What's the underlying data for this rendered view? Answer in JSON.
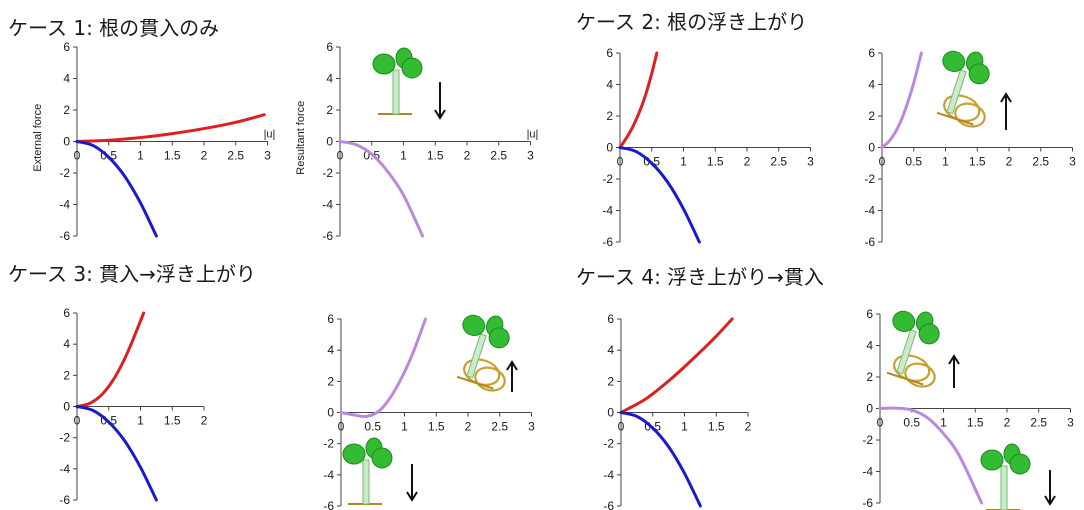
{
  "cases": [
    {
      "title": "ケース 1: 根の貫入のみ"
    },
    {
      "title": "ケース 2: 根の浮き上がり"
    },
    {
      "title": "ケース 3: 貫入→浮き上がり"
    },
    {
      "title": "ケース 4: 浮き上がり→貫入"
    }
  ],
  "colors": {
    "red": "#dd1f1f",
    "blue": "#1a1acc",
    "purple": "#bb88dd"
  },
  "icons": [
    "sprout-root-penetrating-icon",
    "sprout-root-lifting-icon",
    "down-arrow-icon",
    "up-arrow-icon"
  ],
  "chart_data": [
    {
      "type": "line",
      "panel": "case1-external",
      "xticks": [
        "0",
        "0.5",
        "1",
        "1.5",
        "2",
        "2.5",
        "3"
      ],
      "yticks": [
        "-6",
        "-4",
        "-2",
        "0",
        "2",
        "4",
        "6"
      ],
      "xlim": [
        0,
        3
      ],
      "ylim": [
        -6,
        6
      ],
      "xlabel": "|u|",
      "ylabel": "External force",
      "series": [
        {
          "color": "red",
          "x": [
            0,
            0.5,
            1,
            1.5,
            2,
            2.5,
            2.95
          ],
          "y": [
            0,
            0.08,
            0.25,
            0.5,
            0.82,
            1.22,
            1.7
          ]
        },
        {
          "color": "blue",
          "x": [
            0,
            0.25,
            0.5,
            0.75,
            1,
            1.25
          ],
          "y": [
            0,
            -0.25,
            -1.0,
            -2.2,
            -3.9,
            -6
          ]
        }
      ]
    },
    {
      "type": "line",
      "panel": "case1-resultant",
      "xticks": [
        "0",
        "0.5",
        "1",
        "1.5",
        "2",
        "2.5",
        "3"
      ],
      "yticks": [
        "-6",
        "-4",
        "-2",
        "0",
        "2",
        "4",
        "6"
      ],
      "xlim": [
        0,
        3
      ],
      "ylim": [
        -6,
        6
      ],
      "xlabel": "|u|",
      "ylabel": "Resultant force",
      "series": [
        {
          "color": "purple",
          "x": [
            0,
            0.25,
            0.5,
            0.75,
            1,
            1.3
          ],
          "y": [
            0,
            -0.2,
            -0.8,
            -1.9,
            -3.4,
            -6
          ]
        }
      ]
    },
    {
      "type": "line",
      "panel": "case2-external",
      "xticks": [
        "0",
        "0.5",
        "1",
        "1.5",
        "2",
        "2.5",
        "3"
      ],
      "yticks": [
        "-6",
        "-4",
        "-2",
        "0",
        "2",
        "4",
        "6"
      ],
      "xlim": [
        0,
        3
      ],
      "ylim": [
        -6,
        6
      ],
      "series": [
        {
          "color": "red",
          "x": [
            0,
            0.1,
            0.2,
            0.3,
            0.4,
            0.5,
            0.58
          ],
          "y": [
            0,
            0.6,
            1.3,
            2.2,
            3.3,
            4.7,
            6
          ]
        },
        {
          "color": "blue",
          "x": [
            0,
            0.25,
            0.5,
            0.75,
            1,
            1.25
          ],
          "y": [
            0,
            -0.25,
            -1.0,
            -2.2,
            -3.9,
            -6
          ]
        }
      ]
    },
    {
      "type": "line",
      "panel": "case2-resultant",
      "xticks": [
        "0",
        "0.5",
        "1",
        "1.5",
        "2",
        "2.5",
        "3"
      ],
      "yticks": [
        "-6",
        "-4",
        "-2",
        "0",
        "2",
        "4",
        "6"
      ],
      "xlim": [
        0,
        3
      ],
      "ylim": [
        -6,
        6
      ],
      "series": [
        {
          "color": "purple",
          "x": [
            0,
            0.1,
            0.2,
            0.3,
            0.4,
            0.5,
            0.62
          ],
          "y": [
            0,
            0.35,
            0.9,
            1.7,
            2.8,
            4.1,
            6
          ]
        }
      ]
    },
    {
      "type": "line",
      "panel": "case3-external",
      "xticks": [
        "0",
        "0.5",
        "1",
        "1.5",
        "2"
      ],
      "yticks": [
        "-6",
        "-4",
        "-2",
        "0",
        "2",
        "4",
        "6"
      ],
      "xlim": [
        0,
        2
      ],
      "ylim": [
        -6,
        6
      ],
      "series": [
        {
          "color": "red",
          "x": [
            0,
            0.2,
            0.4,
            0.6,
            0.8,
            1.05
          ],
          "y": [
            0,
            0.2,
            0.8,
            1.9,
            3.5,
            6
          ]
        },
        {
          "color": "blue",
          "x": [
            0,
            0.25,
            0.5,
            0.75,
            1,
            1.25
          ],
          "y": [
            0,
            -0.25,
            -1.0,
            -2.2,
            -3.9,
            -6
          ]
        }
      ]
    },
    {
      "type": "line",
      "panel": "case3-resultant",
      "xticks": [
        "0",
        "0.5",
        "1",
        "1.5",
        "2",
        "2.5",
        "3"
      ],
      "yticks": [
        "-6",
        "-4",
        "-2",
        "0",
        "2",
        "4",
        "6"
      ],
      "xlim": [
        0,
        3
      ],
      "ylim": [
        -6,
        6
      ],
      "series": [
        {
          "color": "purple",
          "x": [
            0,
            0.2,
            0.4,
            0.6,
            0.8,
            1.0,
            1.15,
            1.33
          ],
          "y": [
            0,
            -0.15,
            -0.25,
            0.1,
            1.1,
            2.6,
            4.0,
            6
          ]
        }
      ]
    },
    {
      "type": "line",
      "panel": "case4-external",
      "xticks": [
        "0",
        "0.5",
        "1",
        "1.5",
        "2"
      ],
      "yticks": [
        "-6",
        "-4",
        "-2",
        "0",
        "2",
        "4",
        "6"
      ],
      "xlim": [
        0,
        2
      ],
      "ylim": [
        -6,
        6
      ],
      "series": [
        {
          "color": "red",
          "x": [
            0,
            0.4,
            0.8,
            1.2,
            1.5,
            1.75
          ],
          "y": [
            0,
            0.9,
            2.2,
            3.7,
            4.9,
            6
          ]
        },
        {
          "color": "blue",
          "x": [
            0,
            0.25,
            0.5,
            0.75,
            1,
            1.25
          ],
          "y": [
            0,
            -0.25,
            -1.0,
            -2.2,
            -3.9,
            -6
          ]
        }
      ]
    },
    {
      "type": "line",
      "panel": "case4-resultant",
      "xticks": [
        "0",
        "0.5",
        "1",
        "1.5",
        "2",
        "2.5",
        "3"
      ],
      "yticks": [
        "-6",
        "-4",
        "-2",
        "0",
        "2",
        "4",
        "6"
      ],
      "xlim": [
        0,
        3
      ],
      "ylim": [
        -6,
        6
      ],
      "series": [
        {
          "color": "purple",
          "x": [
            0,
            0.25,
            0.5,
            0.75,
            1.0,
            1.25,
            1.6
          ],
          "y": [
            0,
            0.02,
            -0.1,
            -0.6,
            -1.6,
            -3.0,
            -6
          ]
        }
      ]
    }
  ]
}
